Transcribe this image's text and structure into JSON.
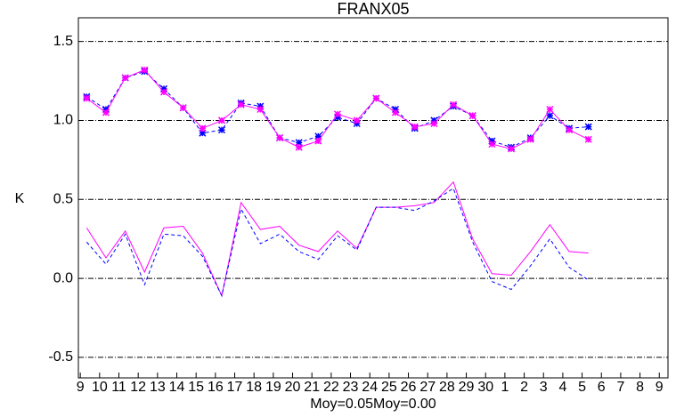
{
  "chart_data": {
    "type": "line",
    "title": "FRANX05",
    "ylabel": "K",
    "xlabel": "Moy=0.05Moy=0.00",
    "xlim": [
      -0.1,
      30.45
    ],
    "xticks": [
      {
        "value": 0,
        "label": "9"
      },
      {
        "value": 1,
        "label": "10"
      },
      {
        "value": 2,
        "label": "11"
      },
      {
        "value": 3,
        "label": "12"
      },
      {
        "value": 4,
        "label": "13"
      },
      {
        "value": 5,
        "label": "14"
      },
      {
        "value": 6,
        "label": "15"
      },
      {
        "value": 7,
        "label": "16"
      },
      {
        "value": 8,
        "label": "17"
      },
      {
        "value": 9,
        "label": "18"
      },
      {
        "value": 10,
        "label": "19"
      },
      {
        "value": 11,
        "label": "20"
      },
      {
        "value": 12,
        "label": "21"
      },
      {
        "value": 13,
        "label": "22"
      },
      {
        "value": 14,
        "label": "23"
      },
      {
        "value": 15,
        "label": "24"
      },
      {
        "value": 16,
        "label": "25"
      },
      {
        "value": 17,
        "label": "26"
      },
      {
        "value": 18,
        "label": "27"
      },
      {
        "value": 19,
        "label": "28"
      },
      {
        "value": 20,
        "label": "29"
      },
      {
        "value": 21,
        "label": "30"
      },
      {
        "value": 22,
        "label": "1"
      },
      {
        "value": 23,
        "label": "2"
      },
      {
        "value": 24,
        "label": "3"
      },
      {
        "value": 25,
        "label": "4"
      },
      {
        "value": 26,
        "label": "5"
      },
      {
        "value": 27,
        "label": "6"
      },
      {
        "value": 28,
        "label": "7"
      },
      {
        "value": 29,
        "label": "8"
      },
      {
        "value": 30,
        "label": "9"
      }
    ],
    "ylim": [
      -0.63,
      1.65
    ],
    "yticks": [
      {
        "value": -0.5,
        "label": "-0.5"
      },
      {
        "value": 0,
        "label": "0.0"
      },
      {
        "value": 0.5,
        "label": "0.5"
      },
      {
        "value": 1,
        "label": "1.0"
      },
      {
        "value": 1.5,
        "label": "1.5"
      }
    ],
    "grid": true,
    "x": [
      0.33,
      1.33,
      2.33,
      3.33,
      4.33,
      5.33,
      6.33,
      7.33,
      8.33,
      9.33,
      10.33,
      11.33,
      12.33,
      13.33,
      14.33,
      15.33,
      16.33,
      17.33,
      18.33,
      19.33,
      20.33,
      21.33,
      22.33,
      23.33,
      24.33,
      25.33,
      26.33
    ],
    "series": [
      {
        "color": "#0000ff",
        "style": "dashed",
        "marker": "asterisk",
        "values": [
          1.15,
          1.07,
          1.27,
          1.31,
          1.2,
          1.08,
          0.92,
          0.94,
          1.11,
          1.09,
          0.89,
          0.86,
          0.9,
          1.02,
          0.98,
          1.14,
          1.07,
          0.95,
          1.0,
          1.09,
          1.03,
          0.87,
          0.83,
          0.89,
          1.03,
          0.95,
          0.96
        ]
      },
      {
        "color": "#ff00ff",
        "style": "solid",
        "marker": "asterisk",
        "values": [
          1.14,
          1.05,
          1.27,
          1.32,
          1.18,
          1.08,
          0.95,
          1.0,
          1.1,
          1.07,
          0.89,
          0.83,
          0.87,
          1.04,
          1.0,
          1.14,
          1.05,
          0.96,
          0.98,
          1.1,
          1.03,
          0.85,
          0.82,
          0.88,
          1.07,
          0.94,
          0.88
        ]
      },
      {
        "color": "#ff00ff",
        "style": "solid",
        "values": [
          0.32,
          0.13,
          0.3,
          0.04,
          0.32,
          0.33,
          0.16,
          -0.11,
          0.48,
          0.31,
          0.33,
          0.21,
          0.17,
          0.3,
          0.19,
          0.45,
          0.45,
          0.46,
          0.48,
          0.61,
          0.25,
          0.03,
          0.02,
          0.17,
          0.34,
          0.17,
          0.16
        ]
      },
      {
        "color": "#0000ff",
        "style": "dashed",
        "values": [
          0.23,
          0.09,
          0.28,
          -0.04,
          0.28,
          0.27,
          0.14,
          -0.11,
          0.44,
          0.22,
          0.28,
          0.17,
          0.12,
          0.27,
          0.18,
          0.45,
          0.45,
          0.43,
          0.49,
          0.57,
          0.23,
          -0.02,
          -0.07,
          0.08,
          0.25,
          0.07,
          -0.01
        ]
      }
    ]
  }
}
